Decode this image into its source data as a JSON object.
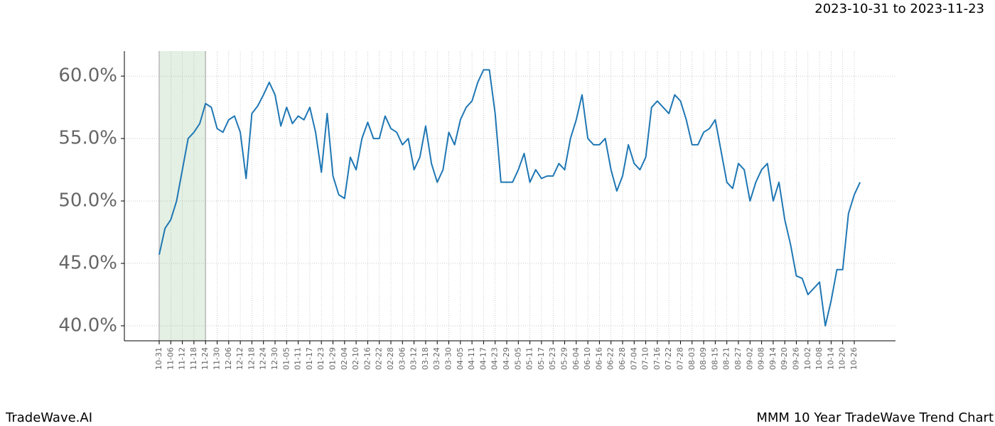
{
  "header": {
    "date_range": "2023-10-31 to 2023-11-23"
  },
  "footer": {
    "brand": "TradeWave.AI",
    "caption": "MMM 10 Year TradeWave Trend Chart"
  },
  "chart_data": {
    "type": "line",
    "categories": [
      "10-31",
      null,
      "11-06",
      null,
      "11-12",
      null,
      "11-18",
      null,
      "11-24",
      null,
      "11-30",
      null,
      "12-06",
      null,
      "12-12",
      null,
      "12-18",
      null,
      "12-24",
      null,
      "12-30",
      null,
      "01-05",
      null,
      "01-11",
      null,
      "01-17",
      null,
      "01-23",
      null,
      "01-29",
      null,
      "02-04",
      null,
      "02-10",
      null,
      "02-16",
      null,
      "02-22",
      null,
      "02-28",
      null,
      "03-06",
      null,
      "03-12",
      null,
      "03-18",
      null,
      "03-24",
      null,
      "03-30",
      null,
      "04-05",
      null,
      "04-11",
      null,
      "04-17",
      null,
      "04-23",
      null,
      "04-29",
      null,
      "05-05",
      null,
      "05-11",
      null,
      "05-17",
      null,
      "05-23",
      null,
      "05-29",
      null,
      "06-04",
      null,
      "06-10",
      null,
      "06-16",
      null,
      "06-22",
      null,
      "06-28",
      null,
      "07-04",
      null,
      "07-10",
      null,
      "07-16",
      null,
      "07-22",
      null,
      "07-28",
      null,
      "08-03",
      null,
      "08-09",
      null,
      "08-15",
      null,
      "08-21",
      null,
      "08-27",
      null,
      "09-02",
      null,
      "09-08",
      null,
      "09-14",
      null,
      "09-20",
      null,
      "09-26",
      null,
      "10-02",
      null,
      "10-08",
      null,
      "10-14",
      null,
      "10-20",
      null,
      "10-26",
      null
    ],
    "series": [
      {
        "color": "#1f77b4",
        "values": [
          45.7,
          47.8,
          48.5,
          50.0,
          52.5,
          55.0,
          55.5,
          56.2,
          57.8,
          57.5,
          55.8,
          55.5,
          56.5,
          56.8,
          55.5,
          51.8,
          57.0,
          57.6,
          58.5,
          59.5,
          58.5,
          56.0,
          57.5,
          56.2,
          56.8,
          56.5,
          57.5,
          55.5,
          52.3,
          57.0,
          52.0,
          50.5,
          50.2,
          53.5,
          52.5,
          55.0,
          56.3,
          55.0,
          55.0,
          56.8,
          55.8,
          55.5,
          54.5,
          55.0,
          52.5,
          53.5,
          56.0,
          53.0,
          51.5,
          52.5,
          55.5,
          54.5,
          56.5,
          57.5,
          58.0,
          59.5,
          60.5,
          60.5,
          57.0,
          51.5,
          51.5,
          51.5,
          52.5,
          53.8,
          51.5,
          52.5,
          51.8,
          52.0,
          52.0,
          53.0,
          52.5,
          55.0,
          56.5,
          58.5,
          55.0,
          54.5,
          54.5,
          55.0,
          52.5,
          50.8,
          52.0,
          54.5,
          53.0,
          52.5,
          53.5,
          57.5,
          58.0,
          57.5,
          57.0,
          58.5,
          58.0,
          56.5,
          54.5,
          54.5,
          55.5,
          55.8,
          56.5,
          54.0,
          51.5,
          51.0,
          53.0,
          52.5,
          50.0,
          51.5,
          52.5,
          53.0,
          50.0,
          51.5,
          48.5,
          46.5,
          44.0,
          43.8,
          42.5,
          43.0,
          43.5,
          40.0,
          42.0,
          44.5,
          44.5,
          49.0,
          50.5,
          51.5
        ]
      }
    ],
    "ylim": [
      38.8,
      62.0
    ],
    "yticks": [
      {
        "value": 40,
        "label": "40.0%"
      },
      {
        "value": 45,
        "label": "45.0%"
      },
      {
        "value": 50,
        "label": "50.0%"
      },
      {
        "value": 55,
        "label": "55.0%"
      },
      {
        "value": 60,
        "label": "60.0%"
      }
    ],
    "grid": true,
    "highlight": {
      "from": "10-31",
      "to": "11-24",
      "color": "#e3f0e3"
    }
  }
}
